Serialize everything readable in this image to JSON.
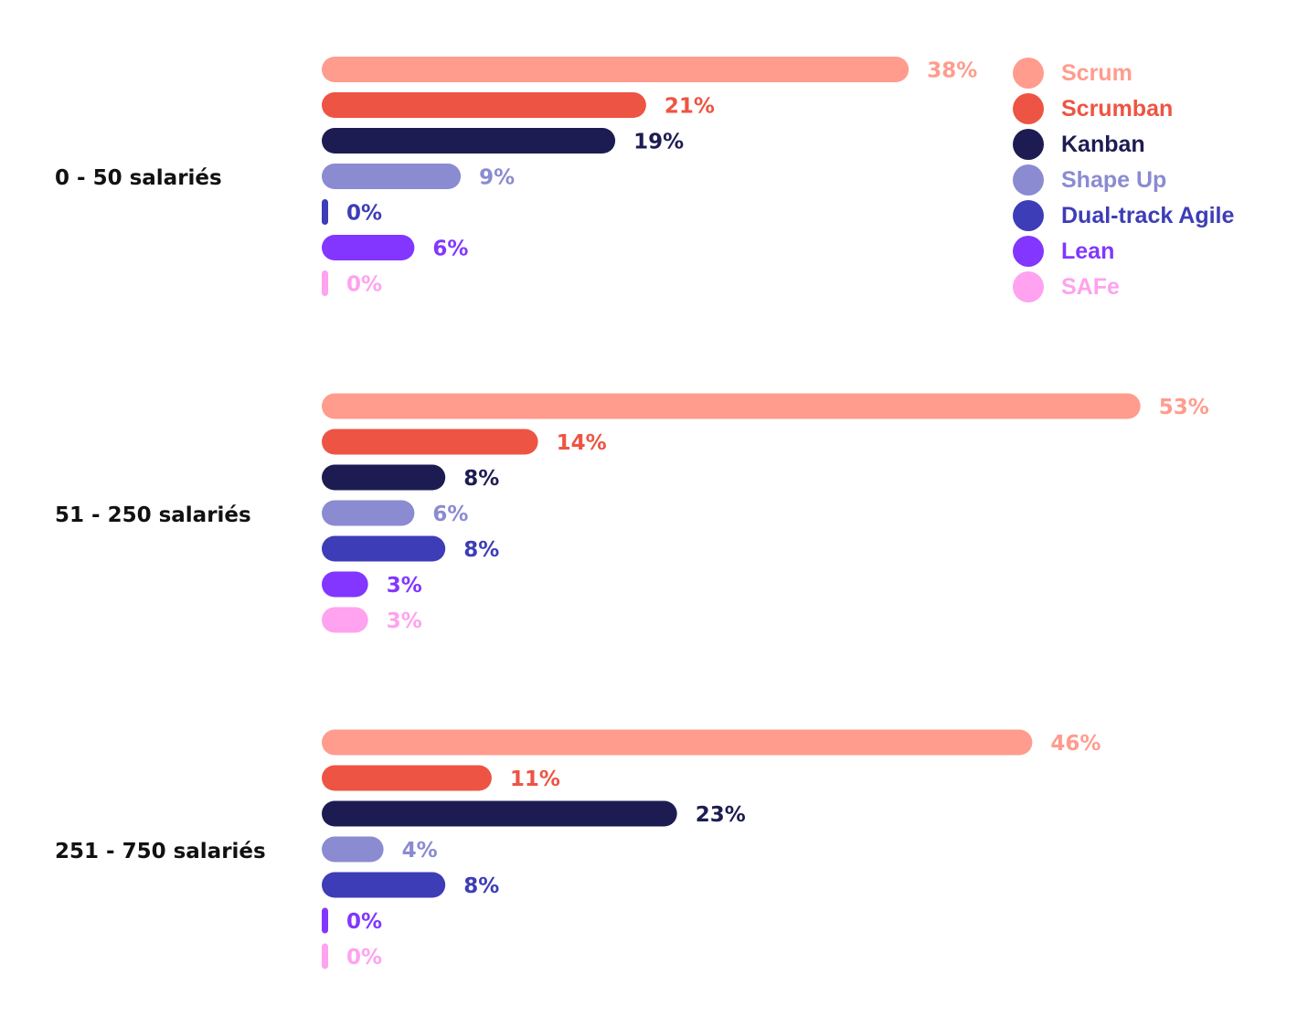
{
  "colors": {
    "Scrum": "#ff9c8e",
    "Scrumban": "#ee5443",
    "Kanban": "#1d1c52",
    "Shape Up": "#8a8bd1",
    "Dual-track Agile": "#3d3db8",
    "Lean": "#8236ff",
    "SAFe": "#ffa2ef"
  },
  "legend": {
    "items": [
      {
        "label": "Scrum",
        "color": "#ff9c8e"
      },
      {
        "label": "Scrumban",
        "color": "#ee5443"
      },
      {
        "label": "Kanban",
        "color": "#1d1c52"
      },
      {
        "label": "Shape Up",
        "color": "#8a8bd1"
      },
      {
        "label": "Dual-track Agile",
        "color": "#3d3db8"
      },
      {
        "label": "Lean",
        "color": "#8236ff"
      },
      {
        "label": "SAFe",
        "color": "#ffa2ef"
      }
    ],
    "placement": "top-right"
  },
  "chart_data": {
    "type": "bar",
    "orientation": "horizontal",
    "groups": [
      "0 - 50 salariés",
      "51 - 250 salariés",
      "251 - 750 salariés"
    ],
    "series": [
      {
        "name": "Scrum",
        "values": [
          38,
          53,
          46
        ],
        "labels": [
          "38%",
          "53%",
          "46%"
        ]
      },
      {
        "name": "Scrumban",
        "values": [
          21,
          14,
          11
        ],
        "labels": [
          "21%",
          "14%",
          "11%"
        ]
      },
      {
        "name": "Kanban",
        "values": [
          19,
          8,
          23
        ],
        "labels": [
          "19%",
          "8%",
          "23%"
        ]
      },
      {
        "name": "Shape Up",
        "values": [
          9,
          6,
          4
        ],
        "labels": [
          "9%",
          "6%",
          "4%"
        ]
      },
      {
        "name": "Dual-track Agile",
        "values": [
          0,
          8,
          8
        ],
        "labels": [
          "0%",
          "8%",
          "8%"
        ]
      },
      {
        "name": "Lean",
        "values": [
          6,
          3,
          0
        ],
        "labels": [
          "6%",
          "3%",
          "0%"
        ]
      },
      {
        "name": "SAFe",
        "values": [
          0,
          3,
          0
        ],
        "labels": [
          "0%",
          "3%",
          "0%"
        ]
      }
    ],
    "unit": "%",
    "title": "",
    "xlabel": "",
    "ylabel": "",
    "grid": false
  }
}
